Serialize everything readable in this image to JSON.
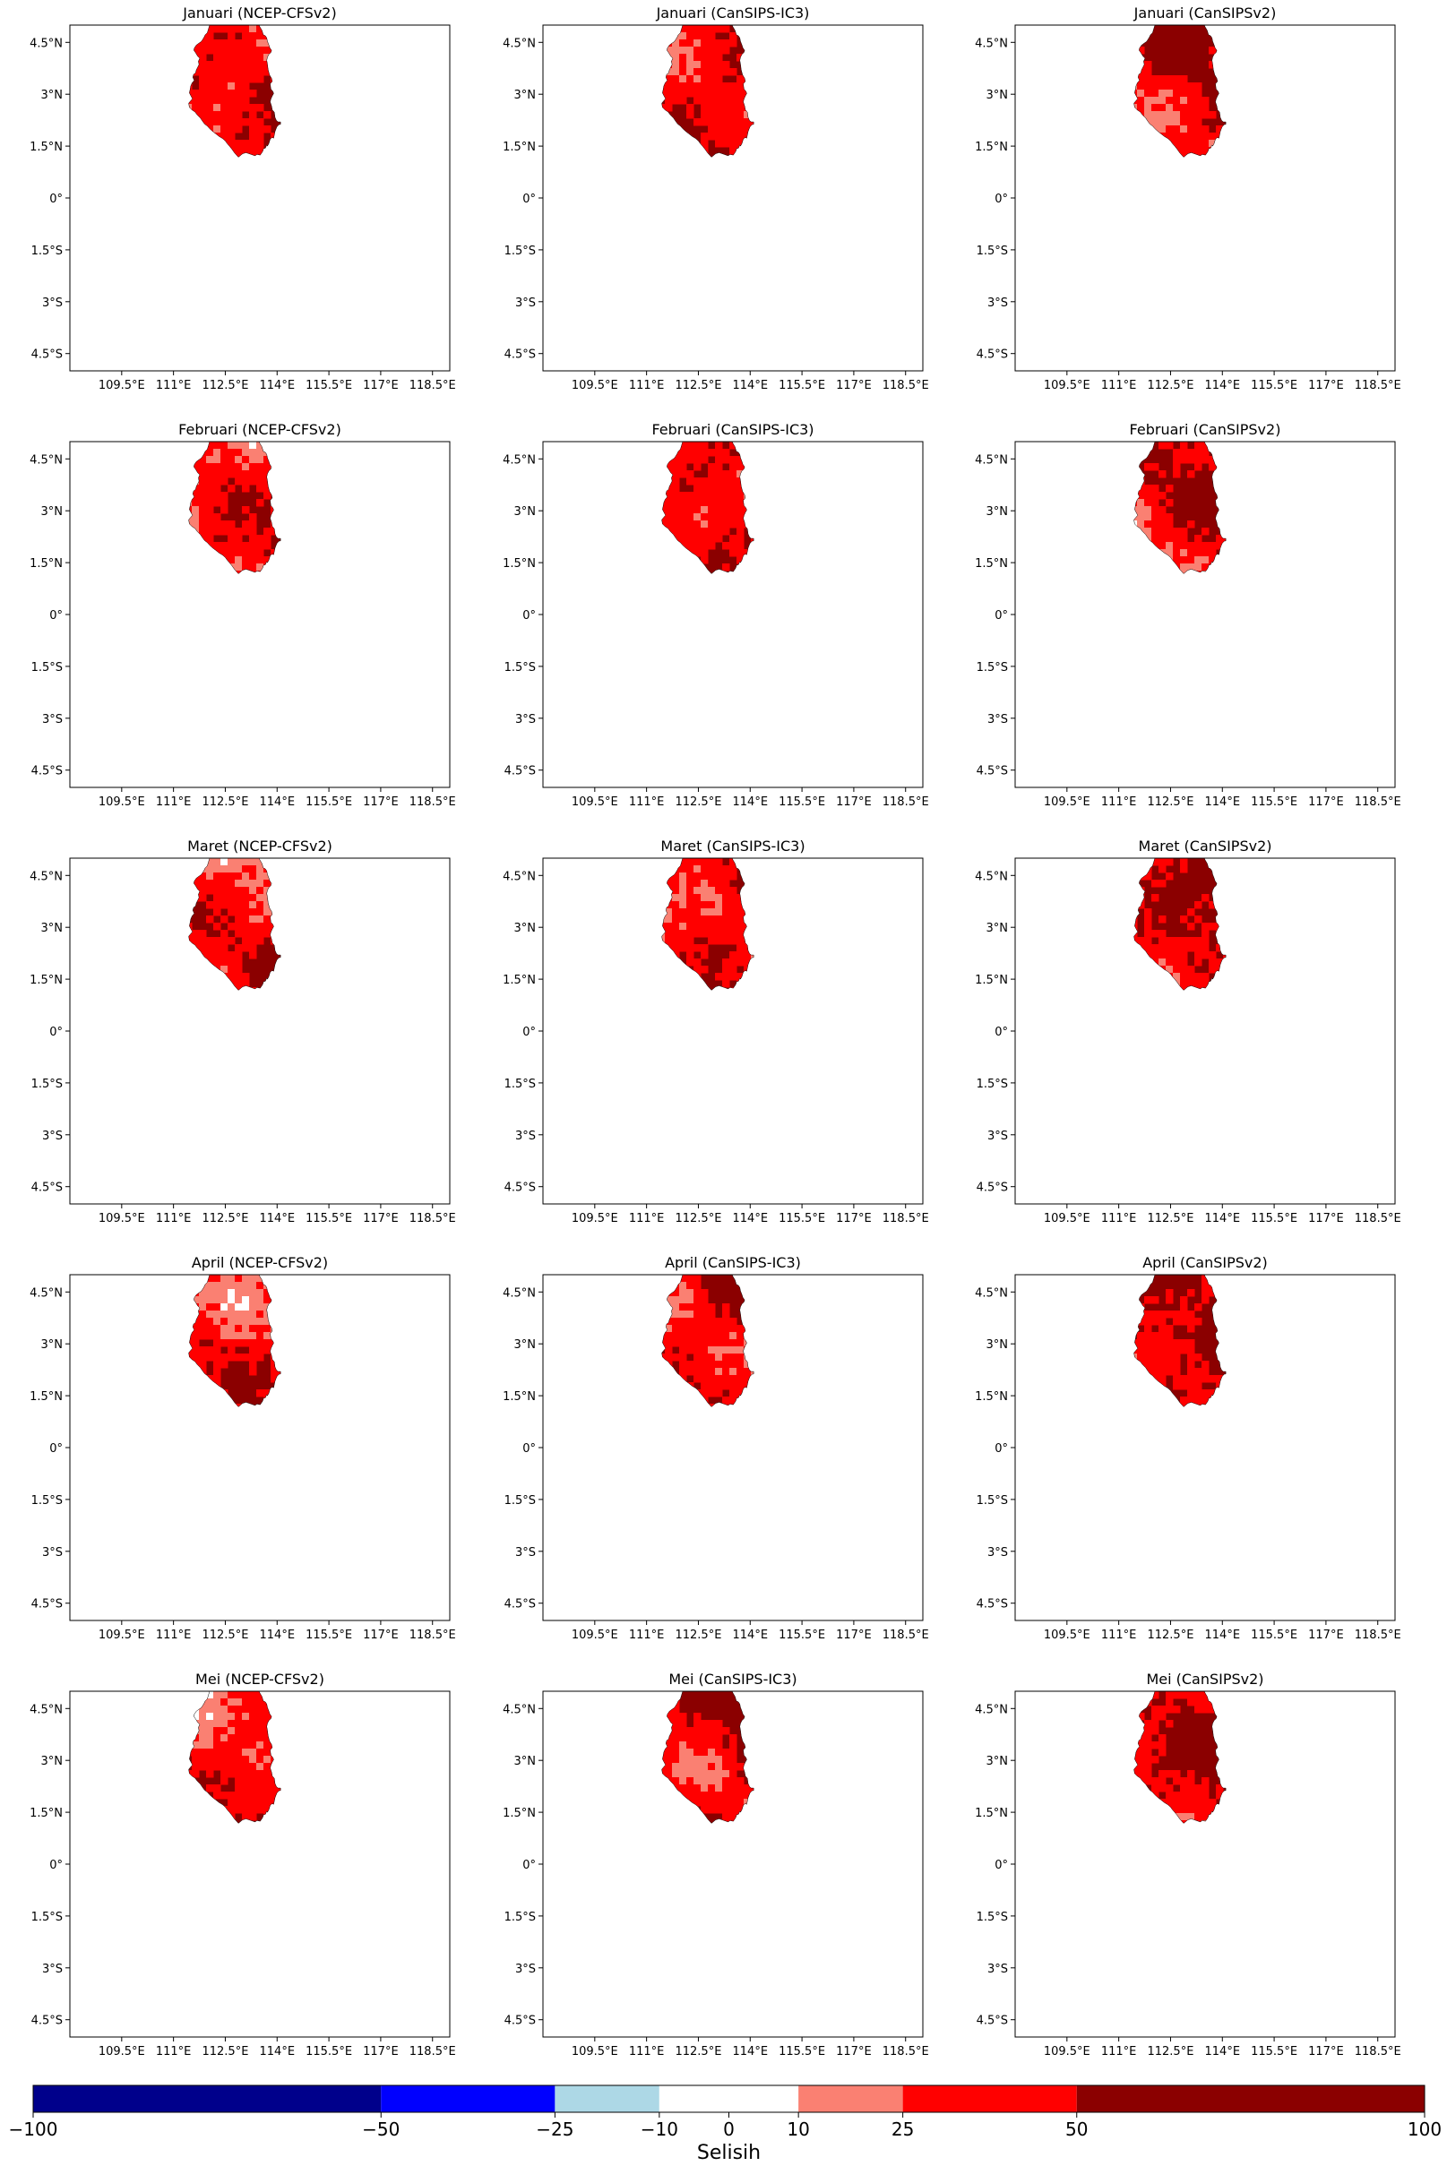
{
  "figure": {
    "colorbar": {
      "label": "Selisih",
      "bounds": [
        -100,
        -50,
        -25,
        -10,
        10,
        25,
        50,
        100
      ],
      "tick_labels": [
        "−100",
        "−50",
        "−25",
        "−10",
        "0",
        "10",
        "25",
        "50",
        "100"
      ],
      "colors": [
        "#00008b",
        "#0000ff",
        "#add8e6",
        "#ffffff",
        "#fa8072",
        "#ff0000",
        "#8b0000"
      ]
    },
    "x_tick_labels": [
      "109.5°E",
      "111°E",
      "112.5°E",
      "114°E",
      "115.5°E",
      "117°E",
      "118.5°E"
    ],
    "y_tick_labels": [
      "4.5°N",
      "3°N",
      "1.5°N",
      "0°",
      "1.5°S",
      "3°S",
      "4.5°S"
    ],
    "panels": [
      {
        "title": "Januari (NCEP-CFSv2)"
      },
      {
        "title": "Januari (CanSIPS-IC3)"
      },
      {
        "title": "Januari (CanSIPSv2)"
      },
      {
        "title": "Februari (NCEP-CFSv2)"
      },
      {
        "title": "Februari (CanSIPS-IC3)"
      },
      {
        "title": "Februari (CanSIPSv2)"
      },
      {
        "title": "Maret (NCEP-CFSv2)"
      },
      {
        "title": "Maret (CanSIPS-IC3)"
      },
      {
        "title": "Maret (CanSIPSv2)"
      },
      {
        "title": "April (NCEP-CFSv2)"
      },
      {
        "title": "April (CanSIPS-IC3)"
      },
      {
        "title": "April (CanSIPSv2)"
      },
      {
        "title": "Mei (NCEP-CFSv2)"
      },
      {
        "title": "Mei (CanSIPS-IC3)"
      },
      {
        "title": "Mei (CanSIPSv2)"
      }
    ]
  },
  "chart_data": {
    "type": "heatmap",
    "description_units": "Selisih",
    "rows": [
      "Januari",
      "Februari",
      "Maret",
      "April",
      "Mei"
    ],
    "columns": [
      "NCEP-CFSv2",
      "CanSIPS-IC3",
      "CanSIPSv2"
    ],
    "xlim": [
      108,
      119
    ],
    "ylim": [
      -5,
      5
    ],
    "x_ticks": [
      109.5,
      111,
      112.5,
      114,
      115.5,
      117,
      118.5
    ],
    "y_ticks": [
      4.5,
      3,
      1.5,
      0,
      -1.5,
      -3,
      -4.5
    ],
    "color_bounds": [
      -100,
      -50,
      -25,
      -10,
      10,
      25,
      50,
      100
    ],
    "grid": false,
    "legend": "bottom colorbar"
  }
}
